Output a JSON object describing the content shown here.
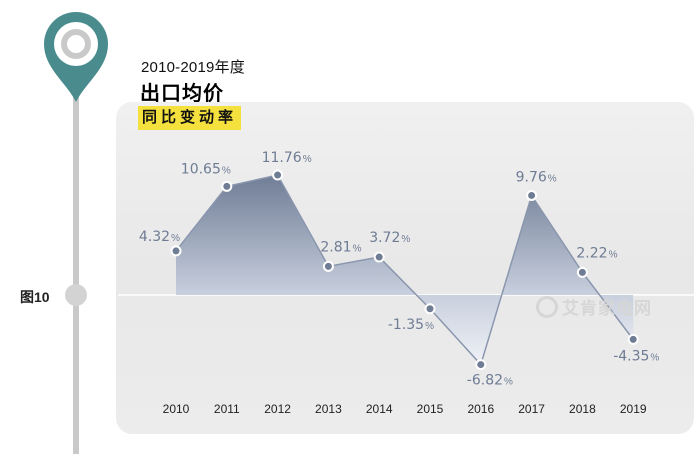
{
  "header": {
    "subtitle": "2010-2019年度",
    "title": "出口均价",
    "badge": "同比变动率"
  },
  "figure_label": "图10",
  "watermark": {
    "text": "艾肯家电网",
    "icon": "ring-logo-icon"
  },
  "colors": {
    "accent_teal": "#4a8c8e",
    "area_top": "#6f7d96",
    "area_fade": "#eef1f6",
    "line": "#8a96ad",
    "label": "#6e7c94",
    "badge": "#f5e13d"
  },
  "chart_data": {
    "type": "area",
    "title": "出口均价",
    "subtitle": "同比变动率",
    "x": [
      "2010",
      "2011",
      "2012",
      "2013",
      "2014",
      "2015",
      "2016",
      "2017",
      "2018",
      "2019"
    ],
    "series": [
      {
        "values": [
          4.32,
          10.65,
          11.76,
          2.81,
          3.72,
          -1.35,
          -6.82,
          9.76,
          2.22,
          -4.35
        ]
      }
    ],
    "value_labels": [
      "4.32",
      "10.65",
      "11.76",
      "2.81",
      "3.72",
      "-1.35",
      "-6.82",
      "9.76",
      "2.22",
      "-4.35"
    ],
    "unit": "%",
    "ylim": [
      -8,
      13
    ],
    "grid": false,
    "legend": "none"
  }
}
